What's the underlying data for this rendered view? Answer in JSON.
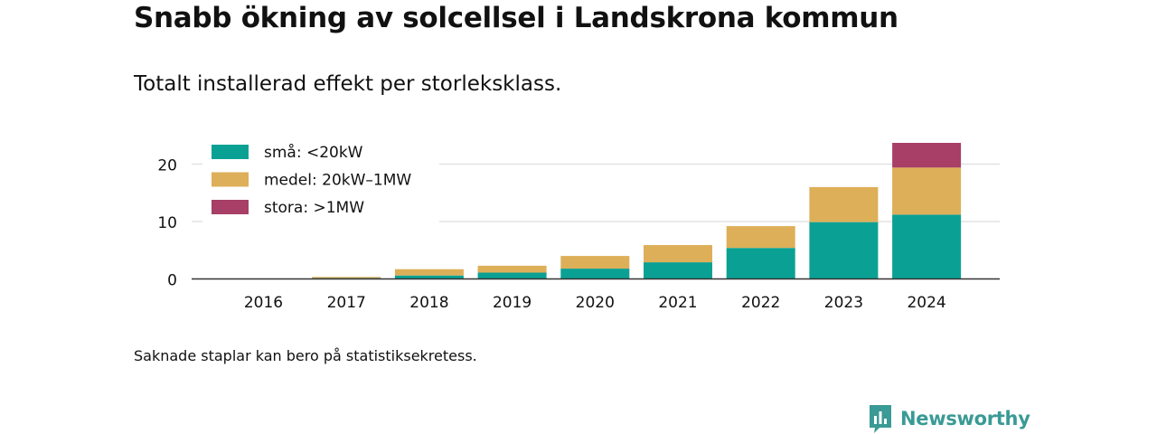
{
  "colors": {
    "small": "#0aa194",
    "medium": "#ddaf58",
    "large": "#a73f67",
    "brand": "#3a9a95",
    "gridline": "#dddddd",
    "axis": "#333333",
    "text": "#111111"
  },
  "header": {
    "title": "Snabb ökning av solcellsel i Landskrona kommun",
    "subtitle": "Totalt installerad effekt per storleksklass."
  },
  "footer": {
    "note": "Saknade staplar kan bero på statistiksekretess.",
    "brand_name": "Newsworthy",
    "brand_icon": "newsworthy-logo-icon"
  },
  "chart_data": {
    "type": "bar",
    "stacked": true,
    "categories": [
      "2016",
      "2017",
      "2018",
      "2019",
      "2020",
      "2021",
      "2022",
      "2023",
      "2024"
    ],
    "series": [
      {
        "name": "små: <20kW",
        "color": "#0aa194",
        "values": [
          0.05,
          0.15,
          0.6,
          1.1,
          1.8,
          2.9,
          5.4,
          9.9,
          11.2
        ]
      },
      {
        "name": "medel: 20kW–1MW",
        "color": "#ddaf58",
        "values": [
          0.0,
          0.2,
          1.1,
          1.2,
          2.2,
          3.0,
          3.8,
          6.1,
          8.2
        ]
      },
      {
        "name": "stora: >1MW",
        "color": "#a73f67",
        "values": [
          0,
          0,
          0,
          0,
          0,
          0,
          0,
          0,
          4.3
        ]
      }
    ],
    "ylim": [
      0,
      25
    ],
    "yticks": [
      0,
      10,
      20
    ],
    "grid": true,
    "legend_position": "top-left"
  }
}
